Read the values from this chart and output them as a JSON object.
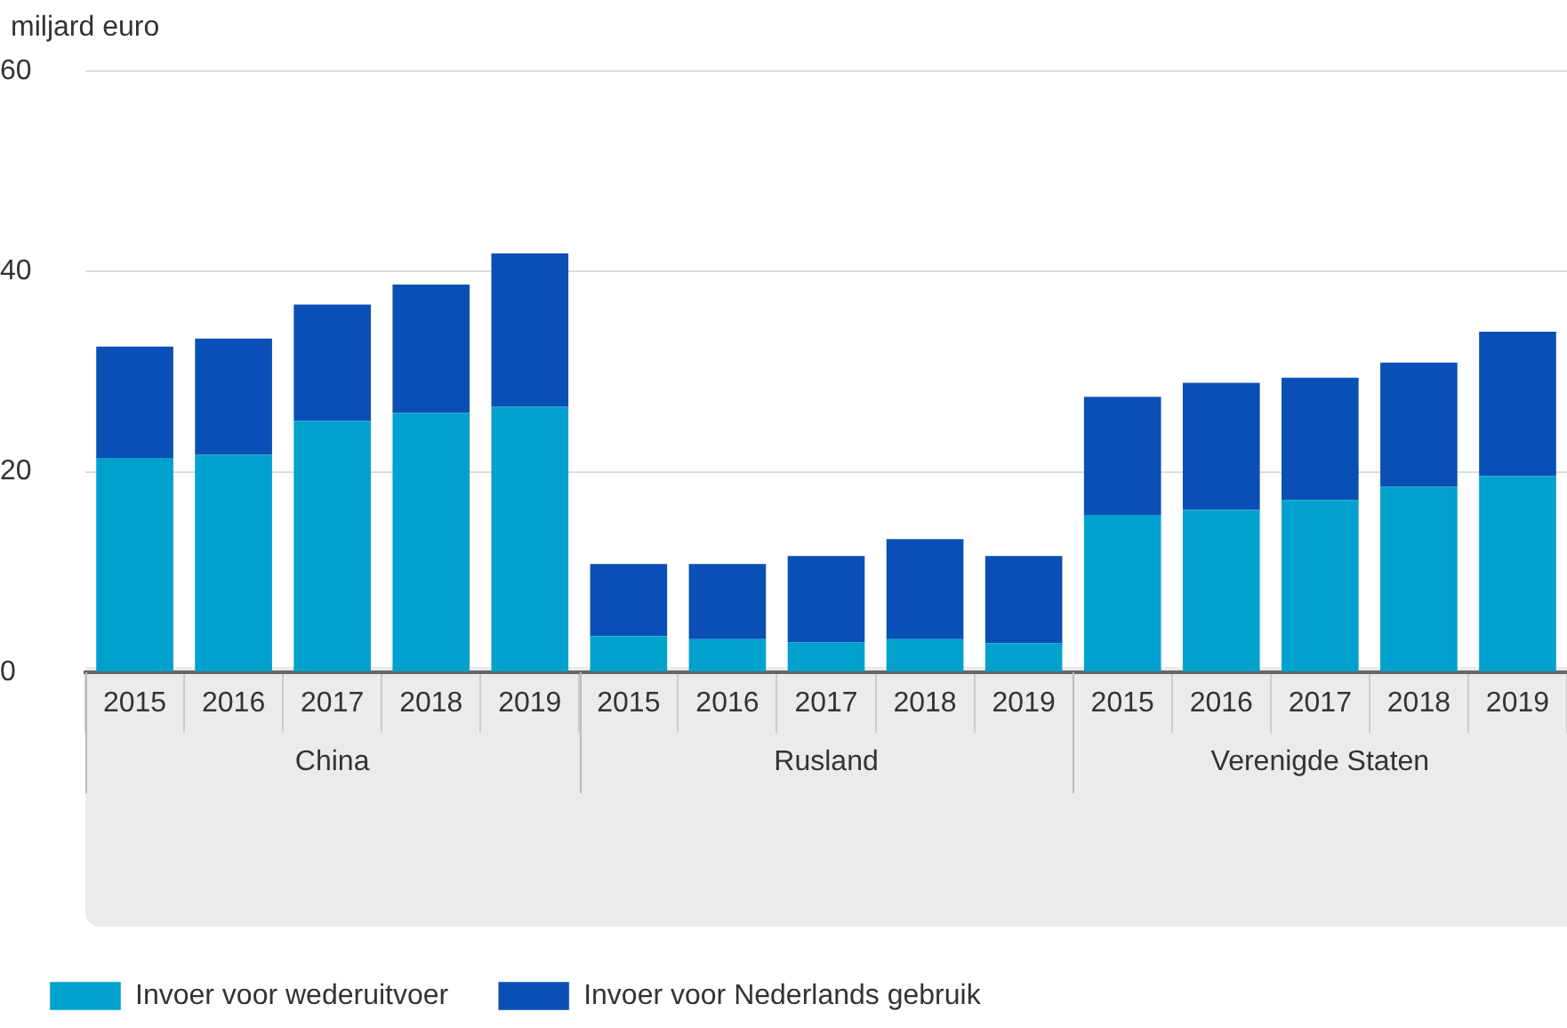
{
  "chart_data": {
    "type": "bar",
    "stacked": true,
    "ylabel": "miljard euro",
    "categories": [
      "2015",
      "2016",
      "2017",
      "2018",
      "2019",
      "2015",
      "2016",
      "2017",
      "2018",
      "2019",
      "2015",
      "2016",
      "2017",
      "2018",
      "2019"
    ],
    "annotations": [
      "China",
      "Rusland",
      "Verenigde Staten"
    ],
    "series": [
      {
        "name": "Invoer voor wederuitvoer",
        "color": "#00a1cd",
        "values": [
          21.4,
          21.7,
          25.1,
          25.9,
          26.5,
          3.6,
          3.3,
          3.0,
          3.3,
          2.9,
          15.7,
          16.2,
          17.2,
          18.5,
          19.6
        ]
      },
      {
        "name": "Invoer voor Nederlands gebruik",
        "color": "#0a4fb5",
        "values": [
          11.1,
          11.6,
          11.6,
          12.8,
          15.3,
          7.2,
          7.5,
          8.6,
          10.0,
          8.7,
          11.8,
          12.7,
          12.2,
          12.4,
          14.4
        ]
      }
    ],
    "ylim": [
      0,
      60
    ],
    "yticks": [
      0,
      20,
      40,
      60
    ],
    "grid": "y",
    "legend": "bottom left"
  }
}
